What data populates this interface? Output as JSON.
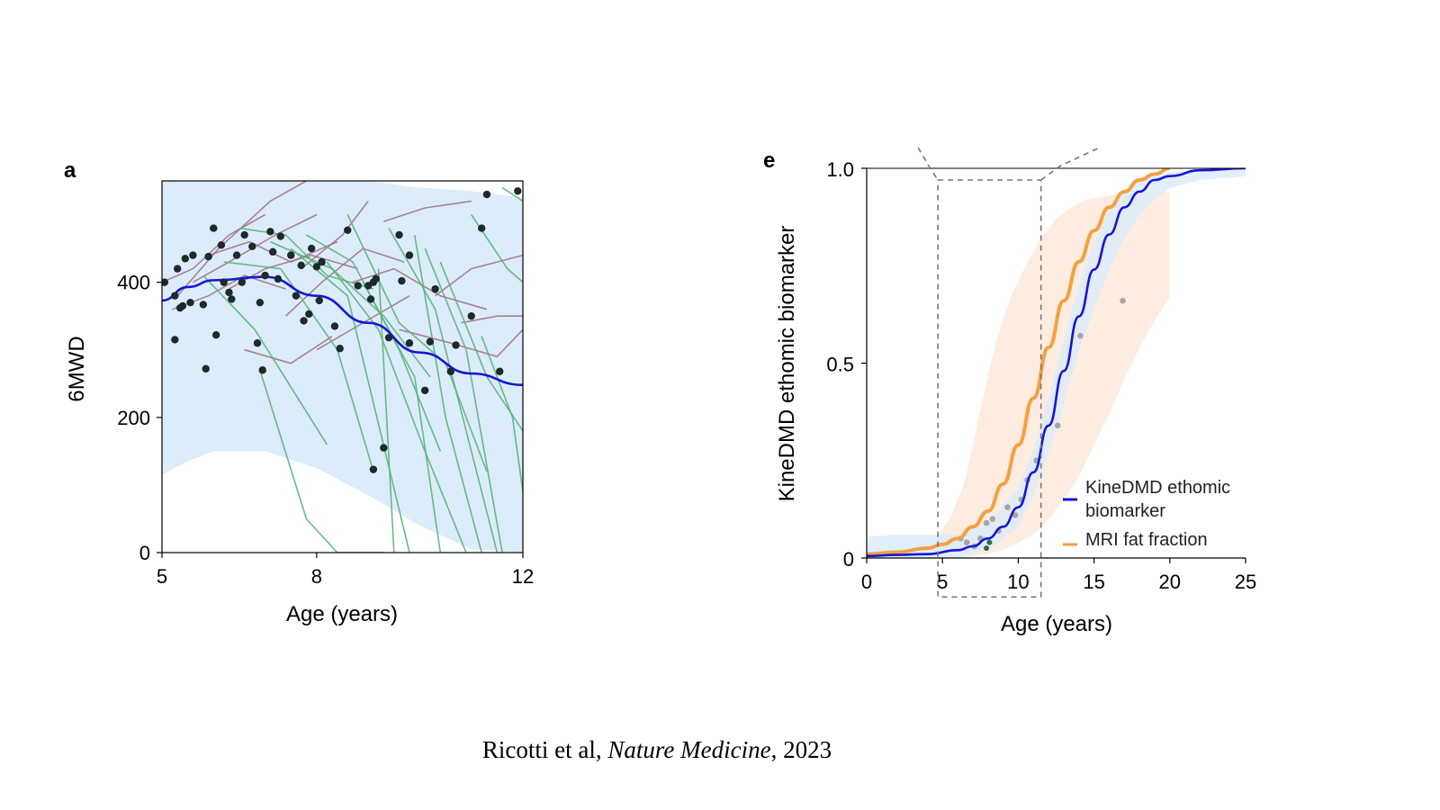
{
  "citation": {
    "authors": "Ricotti et al,",
    "journal": "Nature Medicine",
    "year": ", 2023"
  },
  "colors": {
    "band_blue": "#dcecfb",
    "trend_blue": "#1515d6",
    "green_traj": "#5bb27a",
    "mauve_traj": "#a07080",
    "points": "#1e2a2a",
    "orange": "#f5a040",
    "orange_band": "#fdeadb",
    "grey_points": "#a5a5a5"
  },
  "chart_data": [
    {
      "panel_label": "a",
      "type": "line",
      "xlabel": "Age (years)",
      "ylabel": "6MWD",
      "xlim": [
        5,
        12
      ],
      "ylim": [
        0,
        550
      ],
      "xticks": [
        5,
        8,
        12
      ],
      "yticks": [
        0,
        200,
        400
      ],
      "band": {
        "upper": [
          [
            5,
            550
          ],
          [
            9,
            550
          ],
          [
            10,
            540
          ],
          [
            11,
            535
          ],
          [
            12,
            525
          ]
        ],
        "lower": [
          [
            5,
            115
          ],
          [
            5.5,
            135
          ],
          [
            6,
            150
          ],
          [
            7,
            150
          ],
          [
            8,
            125
          ],
          [
            9,
            85
          ],
          [
            10,
            40
          ],
          [
            11,
            5
          ],
          [
            12,
            0
          ]
        ]
      },
      "trend": [
        [
          5,
          373
        ],
        [
          5.5,
          393
        ],
        [
          6,
          403
        ],
        [
          7,
          408
        ],
        [
          8,
          380
        ],
        [
          9,
          340
        ],
        [
          10,
          296
        ],
        [
          11,
          265
        ],
        [
          12,
          248
        ]
      ],
      "green_trajectories": [
        [
          [
            5.8,
            410
          ],
          [
            6.8,
            330
          ],
          [
            8.2,
            160
          ]
        ],
        [
          [
            6.2,
            430
          ],
          [
            7.3,
            420
          ],
          [
            8.4,
            300
          ],
          [
            9.1,
            120
          ]
        ],
        [
          [
            6.9,
            270
          ],
          [
            7.8,
            50
          ],
          [
            8.4,
            0
          ],
          [
            9.3,
            0
          ]
        ],
        [
          [
            7.5,
            450
          ],
          [
            8.6,
            380
          ],
          [
            9.8,
            0
          ]
        ],
        [
          [
            8.2,
            430
          ],
          [
            9.2,
            330
          ],
          [
            10.1,
            150
          ],
          [
            10.9,
            0
          ]
        ],
        [
          [
            8.6,
            500
          ],
          [
            9.6,
            340
          ],
          [
            10.5,
            280
          ],
          [
            11.3,
            120
          ]
        ],
        [
          [
            9.4,
            480
          ],
          [
            10.3,
            360
          ],
          [
            11.5,
            0
          ]
        ],
        [
          [
            10.1,
            450
          ],
          [
            10.9,
            300
          ],
          [
            11.6,
            0
          ]
        ],
        [
          [
            10.4,
            430
          ],
          [
            11.3,
            260
          ],
          [
            12,
            180
          ]
        ],
        [
          [
            9.9,
            470
          ],
          [
            10.5,
            200
          ],
          [
            11.2,
            0
          ]
        ],
        [
          [
            7.1,
            460
          ],
          [
            8.3,
            420
          ],
          [
            9.3,
            350
          ],
          [
            10.2,
            260
          ]
        ],
        [
          [
            6.5,
            480
          ],
          [
            7.4,
            470
          ],
          [
            8.2,
            410
          ],
          [
            9.1,
            390
          ]
        ],
        [
          [
            11.0,
            500
          ],
          [
            11.7,
            420
          ],
          [
            12,
            400
          ]
        ],
        [
          [
            11.6,
            540
          ],
          [
            12,
            520
          ]
        ],
        [
          [
            8.9,
            400
          ],
          [
            9.9,
            260
          ],
          [
            10.4,
            0
          ]
        ],
        [
          [
            7.8,
            470
          ],
          [
            8.7,
            430
          ],
          [
            9.6,
            300
          ],
          [
            10.4,
            150
          ]
        ],
        [
          [
            9.2,
            420
          ],
          [
            9.5,
            0
          ]
        ],
        [
          [
            11.2,
            320
          ],
          [
            11.8,
            200
          ],
          [
            12,
            90
          ]
        ]
      ],
      "mauve_trajectories": [
        [
          [
            5.3,
            380
          ],
          [
            6.1,
            450
          ],
          [
            7.1,
            520
          ],
          [
            7.8,
            550
          ]
        ],
        [
          [
            5.6,
            400
          ],
          [
            6.3,
            430
          ],
          [
            7.2,
            470
          ],
          [
            8.0,
            500
          ]
        ],
        [
          [
            5.9,
            440
          ],
          [
            6.7,
            460
          ],
          [
            7.5,
            430
          ],
          [
            8.4,
            460
          ]
        ],
        [
          [
            6.3,
            390
          ],
          [
            7.0,
            420
          ],
          [
            7.9,
            440
          ],
          [
            8.8,
            420
          ]
        ],
        [
          [
            5.2,
            360
          ],
          [
            5.9,
            380
          ],
          [
            6.6,
            410
          ],
          [
            7.4,
            390
          ]
        ],
        [
          [
            7.4,
            350
          ],
          [
            8.1,
            400
          ],
          [
            8.9,
            450
          ],
          [
            9.7,
            430
          ]
        ],
        [
          [
            8.7,
            400
          ],
          [
            9.5,
            420
          ],
          [
            10.4,
            380
          ],
          [
            11.3,
            360
          ]
        ],
        [
          [
            6.6,
            300
          ],
          [
            7.5,
            280
          ],
          [
            8.3,
            320
          ]
        ],
        [
          [
            9.6,
            330
          ],
          [
            10.6,
            310
          ],
          [
            11.5,
            290
          ],
          [
            12,
            330
          ]
        ],
        [
          [
            8.0,
            300
          ],
          [
            8.9,
            340
          ],
          [
            9.8,
            380
          ]
        ],
        [
          [
            10.3,
            380
          ],
          [
            11.0,
            420
          ],
          [
            12,
            440
          ]
        ],
        [
          [
            5.0,
            400
          ],
          [
            5.6,
            420
          ],
          [
            6.3,
            470
          ],
          [
            7.0,
            500
          ]
        ],
        [
          [
            9.3,
            490
          ],
          [
            10.1,
            510
          ],
          [
            11.0,
            520
          ]
        ],
        [
          [
            10.8,
            340
          ],
          [
            11.5,
            350
          ],
          [
            12,
            350
          ]
        ],
        [
          [
            7.7,
            420
          ],
          [
            8.5,
            470
          ],
          [
            9.0,
            520
          ]
        ]
      ],
      "points": [
        [
          5.05,
          400
        ],
        [
          5.25,
          380
        ],
        [
          5.3,
          420
        ],
        [
          5.35,
          362
        ],
        [
          5.4,
          365
        ],
        [
          5.45,
          435
        ],
        [
          5.55,
          370
        ],
        [
          5.6,
          440
        ],
        [
          5.25,
          315
        ],
        [
          5.8,
          367
        ],
        [
          5.85,
          272
        ],
        [
          5.9,
          438
        ],
        [
          6.0,
          480
        ],
        [
          6.05,
          322
        ],
        [
          6.15,
          455
        ],
        [
          6.2,
          400
        ],
        [
          6.3,
          385
        ],
        [
          6.35,
          375
        ],
        [
          6.45,
          440
        ],
        [
          6.55,
          400
        ],
        [
          6.6,
          470
        ],
        [
          6.75,
          453
        ],
        [
          6.85,
          310
        ],
        [
          6.9,
          370
        ],
        [
          6.95,
          270
        ],
        [
          7.0,
          410
        ],
        [
          7.1,
          475
        ],
        [
          7.15,
          445
        ],
        [
          7.25,
          405
        ],
        [
          7.3,
          468
        ],
        [
          7.5,
          440
        ],
        [
          7.6,
          380
        ],
        [
          7.7,
          425
        ],
        [
          7.75,
          343
        ],
        [
          7.85,
          353
        ],
        [
          7.9,
          450
        ],
        [
          8.0,
          423
        ],
        [
          8.05,
          373
        ],
        [
          8.1,
          430
        ],
        [
          8.35,
          335
        ],
        [
          8.45,
          302
        ],
        [
          8.6,
          477
        ],
        [
          8.8,
          395
        ],
        [
          9.0,
          395
        ],
        [
          9.05,
          375
        ],
        [
          9.1,
          123
        ],
        [
          9.1,
          400
        ],
        [
          9.15,
          405
        ],
        [
          9.3,
          155
        ],
        [
          9.4,
          318
        ],
        [
          9.6,
          470
        ],
        [
          9.65,
          402
        ],
        [
          9.8,
          440
        ],
        [
          9.8,
          310
        ],
        [
          10.1,
          240
        ],
        [
          10.2,
          312
        ],
        [
          10.3,
          390
        ],
        [
          10.6,
          268
        ],
        [
          10.7,
          307
        ],
        [
          11.0,
          350
        ],
        [
          11.2,
          480
        ],
        [
          11.3,
          530
        ],
        [
          11.55,
          268
        ],
        [
          11.9,
          535
        ]
      ]
    },
    {
      "panel_label": "e",
      "type": "line",
      "xlabel": "Age (years)",
      "ylabel": "KineDMD ethomic biomarker",
      "xlim": [
        0,
        25
      ],
      "ylim": [
        0,
        1.0
      ],
      "xticks": [
        0,
        5,
        10,
        15,
        20,
        25
      ],
      "yticks": [
        0,
        0.5,
        1.0
      ],
      "ytick_labels": [
        "0",
        "0.5",
        "1.0"
      ],
      "series": [
        {
          "name": "KineDMD ethomic biomarker",
          "color": "#1515d6",
          "x": [
            0,
            2,
            4,
            6,
            7,
            8,
            9,
            10,
            11,
            12,
            13,
            14,
            15,
            16,
            17,
            18,
            19,
            20,
            22,
            25
          ],
          "y": [
            0.005,
            0.008,
            0.01,
            0.02,
            0.03,
            0.05,
            0.08,
            0.13,
            0.22,
            0.34,
            0.48,
            0.62,
            0.74,
            0.83,
            0.9,
            0.94,
            0.97,
            0.98,
            0.995,
            1.0
          ]
        },
        {
          "name": "MRI fat fraction",
          "color": "#f5a040",
          "x": [
            0,
            2,
            4,
            5,
            6,
            7,
            8,
            9,
            10,
            11,
            12,
            13,
            14,
            15,
            16,
            17,
            18,
            19,
            20
          ],
          "y": [
            0.01,
            0.015,
            0.025,
            0.035,
            0.05,
            0.08,
            0.12,
            0.19,
            0.29,
            0.41,
            0.54,
            0.66,
            0.76,
            0.84,
            0.9,
            0.94,
            0.97,
            0.985,
            1.0
          ]
        }
      ],
      "blue_band": {
        "upper": [
          [
            0,
            0.055
          ],
          [
            2,
            0.06
          ],
          [
            4,
            0.06
          ],
          [
            6,
            0.06
          ],
          [
            8,
            0.09
          ],
          [
            10,
            0.18
          ],
          [
            11,
            0.28
          ],
          [
            12,
            0.41
          ],
          [
            13,
            0.56
          ],
          [
            14,
            0.7
          ],
          [
            15,
            0.81
          ],
          [
            16,
            0.89
          ],
          [
            17,
            0.94
          ],
          [
            18,
            0.97
          ],
          [
            20,
            0.99
          ],
          [
            25,
            1.0
          ]
        ],
        "lower": [
          [
            25,
            0.98
          ],
          [
            22,
            0.97
          ],
          [
            20,
            0.95
          ],
          [
            19,
            0.92
          ],
          [
            18,
            0.88
          ],
          [
            17,
            0.82
          ],
          [
            16,
            0.74
          ],
          [
            15,
            0.64
          ],
          [
            14,
            0.53
          ],
          [
            13,
            0.4
          ],
          [
            12,
            0.27
          ],
          [
            11,
            0.16
          ],
          [
            10,
            0.08
          ],
          [
            8,
            0.02
          ],
          [
            6,
            0.0
          ],
          [
            0,
            0.0
          ]
        ]
      },
      "orange_band": {
        "upper": [
          [
            4.5,
            0.05
          ],
          [
            5.5,
            0.1
          ],
          [
            6.5,
            0.2
          ],
          [
            7.5,
            0.38
          ],
          [
            8.5,
            0.55
          ],
          [
            9.5,
            0.67
          ],
          [
            10.5,
            0.75
          ],
          [
            11.5,
            0.82
          ],
          [
            12.5,
            0.87
          ],
          [
            13.5,
            0.9
          ],
          [
            14.5,
            0.92
          ],
          [
            16,
            0.93
          ],
          [
            18,
            0.94
          ],
          [
            20,
            0.94
          ]
        ],
        "lower": [
          [
            20,
            0.67
          ],
          [
            19,
            0.61
          ],
          [
            18,
            0.54
          ],
          [
            17,
            0.46
          ],
          [
            16,
            0.37
          ],
          [
            15,
            0.29
          ],
          [
            14,
            0.21
          ],
          [
            13,
            0.15
          ],
          [
            12,
            0.1
          ],
          [
            11,
            0.06
          ],
          [
            10,
            0.04
          ],
          [
            9,
            0.02
          ],
          [
            8,
            0.01
          ],
          [
            6,
            0.0
          ],
          [
            4.5,
            0.0
          ]
        ]
      },
      "grey_points": [
        [
          6.2,
          0.05
        ],
        [
          6.6,
          0.04
        ],
        [
          7.1,
          0.03
        ],
        [
          7.5,
          0.05
        ],
        [
          7.9,
          0.09
        ],
        [
          8.3,
          0.1
        ],
        [
          8.7,
          0.07
        ],
        [
          9.3,
          0.13
        ],
        [
          9.8,
          0.11
        ],
        [
          10.2,
          0.15
        ],
        [
          10.6,
          0.2
        ],
        [
          11.2,
          0.25
        ],
        [
          12.6,
          0.34
        ],
        [
          14.1,
          0.57
        ],
        [
          16.9,
          0.66
        ]
      ],
      "green_points": [
        [
          7.9,
          0.025
        ],
        [
          8.1,
          0.04
        ]
      ],
      "inset_box": {
        "x": [
          4.7,
          11.5
        ],
        "y": [
          -0.1,
          0.97
        ]
      },
      "legend_position": "bottom-right"
    }
  ]
}
